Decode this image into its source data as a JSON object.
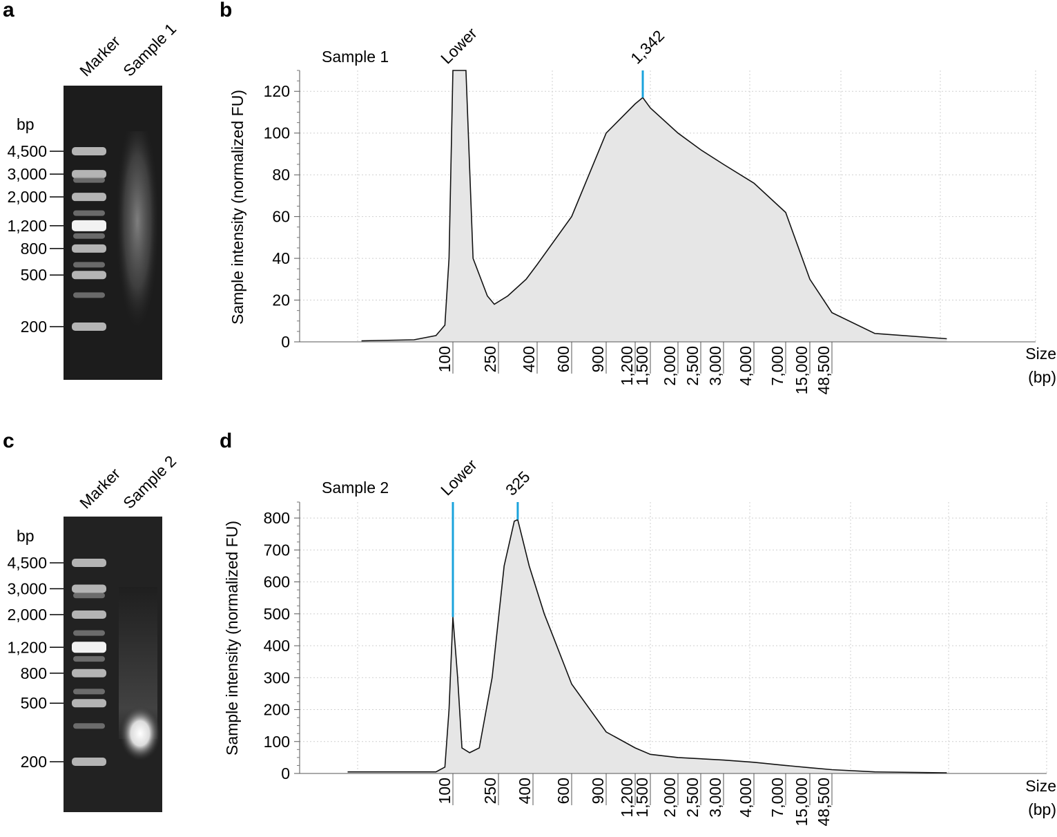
{
  "panel_letters": [
    "a",
    "b",
    "c",
    "d"
  ],
  "gels": [
    {
      "lane_labels": [
        "Marker",
        "Sample 1"
      ],
      "unit": "bp",
      "marker_labels": [
        "4,500",
        "3,000",
        "2,000",
        "1,200",
        "800",
        "500",
        "200"
      ],
      "marker_bp": [
        4500,
        3000,
        2000,
        1200,
        800,
        500,
        200
      ],
      "sample_pattern": "broad smear, brightest around 1,200–2,000 bp"
    },
    {
      "lane_labels": [
        "Marker",
        "Sample 2"
      ],
      "unit": "bp",
      "marker_labels": [
        "4,500",
        "3,000",
        "2,000",
        "1,200",
        "800",
        "500",
        "200"
      ],
      "marker_bp": [
        4500,
        3000,
        2000,
        1200,
        800,
        500,
        200
      ],
      "sample_pattern": "bright band around 300 bp with faint smear above"
    }
  ],
  "chart_data": [
    {
      "type": "area",
      "sample_label": "Sample 1",
      "ylabel": "Sample intensity (normalized FU)",
      "xlabel": "Size (bp)",
      "xlabel_lines": [
        "Size",
        "(bp)"
      ],
      "ylim": [
        0,
        130
      ],
      "yticks": [
        0,
        20,
        40,
        60,
        80,
        100,
        120
      ],
      "x_tick_labels": [
        "100",
        "250",
        "400",
        "600",
        "900",
        "1,200",
        "1,500",
        "2,000",
        "2,500",
        "3,000",
        "4,000",
        "7,000",
        "15,000",
        "48,500"
      ],
      "x_tick_values": [
        100,
        250,
        400,
        600,
        900,
        1200,
        1500,
        2000,
        2500,
        3000,
        4000,
        7000,
        15000,
        48500
      ],
      "peak_labels": [
        {
          "label": "Lower",
          "bp": 100,
          "marker_line": false
        },
        {
          "label": "1,342",
          "bp": 1342,
          "marker_line": true
        }
      ],
      "grid": true,
      "profile": [
        {
          "bp": 30,
          "fu": 0.5
        },
        {
          "bp": 60,
          "fu": 1
        },
        {
          "bp": 80,
          "fu": 3
        },
        {
          "bp": 90,
          "fu": 8
        },
        {
          "bp": 95,
          "fu": 40
        },
        {
          "bp": 100,
          "fu": 140
        },
        {
          "bp": 130,
          "fu": 140
        },
        {
          "bp": 150,
          "fu": 40
        },
        {
          "bp": 200,
          "fu": 22
        },
        {
          "bp": 230,
          "fu": 18
        },
        {
          "bp": 280,
          "fu": 22
        },
        {
          "bp": 350,
          "fu": 30
        },
        {
          "bp": 400,
          "fu": 37
        },
        {
          "bp": 600,
          "fu": 60
        },
        {
          "bp": 900,
          "fu": 100
        },
        {
          "bp": 1200,
          "fu": 114
        },
        {
          "bp": 1342,
          "fu": 117
        },
        {
          "bp": 1500,
          "fu": 112
        },
        {
          "bp": 2000,
          "fu": 100
        },
        {
          "bp": 2500,
          "fu": 92
        },
        {
          "bp": 3000,
          "fu": 85
        },
        {
          "bp": 4000,
          "fu": 76
        },
        {
          "bp": 7000,
          "fu": 62
        },
        {
          "bp": 15000,
          "fu": 30
        },
        {
          "bp": 48500,
          "fu": 14
        },
        {
          "bp": 150000,
          "fu": 4
        },
        {
          "bp": 1000000,
          "fu": 1.5
        }
      ]
    },
    {
      "type": "area",
      "sample_label": "Sample 2",
      "ylabel": "Sample intensity (normalized FU)",
      "xlabel": "Size (bp)",
      "xlabel_lines": [
        "Size",
        "(bp)"
      ],
      "ylim": [
        0,
        850
      ],
      "yticks": [
        0,
        100,
        200,
        300,
        400,
        500,
        600,
        700,
        800
      ],
      "x_tick_labels": [
        "100",
        "250",
        "400",
        "600",
        "900",
        "1,200",
        "1,500",
        "2,000",
        "2,500",
        "3,000",
        "4,000",
        "7,000",
        "15,000",
        "48,500"
      ],
      "x_tick_values": [
        100,
        250,
        400,
        600,
        900,
        1200,
        1500,
        2000,
        2500,
        3000,
        4000,
        7000,
        15000,
        48500
      ],
      "peak_labels": [
        {
          "label": "Lower",
          "bp": 100,
          "marker_line": true
        },
        {
          "label": "325",
          "bp": 325,
          "marker_line": true
        }
      ],
      "grid": true,
      "profile": [
        {
          "bp": 25,
          "fu": 5
        },
        {
          "bp": 80,
          "fu": 5
        },
        {
          "bp": 90,
          "fu": 20
        },
        {
          "bp": 95,
          "fu": 200
        },
        {
          "bp": 100,
          "fu": 490
        },
        {
          "bp": 110,
          "fu": 300
        },
        {
          "bp": 120,
          "fu": 80
        },
        {
          "bp": 140,
          "fu": 65
        },
        {
          "bp": 170,
          "fu": 80
        },
        {
          "bp": 220,
          "fu": 300
        },
        {
          "bp": 270,
          "fu": 650
        },
        {
          "bp": 310,
          "fu": 790
        },
        {
          "bp": 325,
          "fu": 795
        },
        {
          "bp": 380,
          "fu": 650
        },
        {
          "bp": 450,
          "fu": 500
        },
        {
          "bp": 500,
          "fu": 420
        },
        {
          "bp": 600,
          "fu": 280
        },
        {
          "bp": 900,
          "fu": 130
        },
        {
          "bp": 1200,
          "fu": 80
        },
        {
          "bp": 1500,
          "fu": 60
        },
        {
          "bp": 2000,
          "fu": 50
        },
        {
          "bp": 3000,
          "fu": 42
        },
        {
          "bp": 4000,
          "fu": 35
        },
        {
          "bp": 7000,
          "fu": 25
        },
        {
          "bp": 15000,
          "fu": 18
        },
        {
          "bp": 48500,
          "fu": 12
        },
        {
          "bp": 150000,
          "fu": 5
        },
        {
          "bp": 1000000,
          "fu": 2
        }
      ]
    }
  ]
}
